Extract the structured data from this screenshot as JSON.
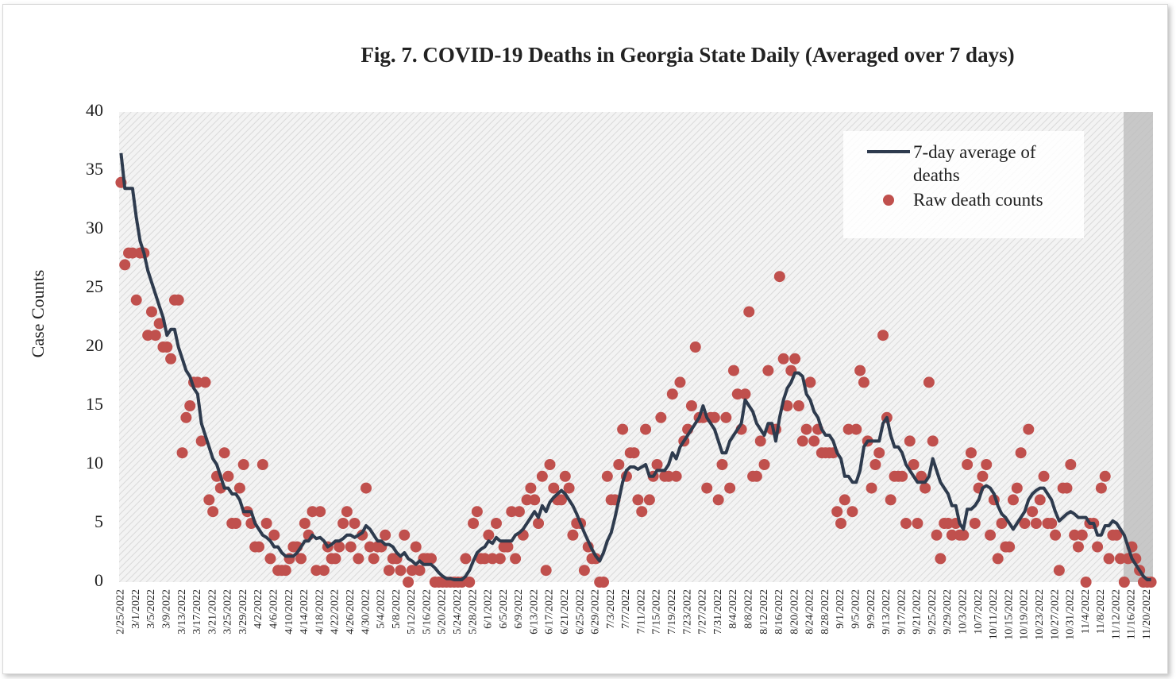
{
  "chart_data": {
    "type": "line",
    "title": "Fig. 7. COVID-19 Deaths in Georgia State Daily (Averaged over 7 days)",
    "y_label": "Case Counts",
    "ylim": [
      0,
      40
    ],
    "yticks": [
      0,
      5,
      10,
      15,
      20,
      25,
      30,
      35,
      40
    ],
    "grid": false,
    "legend": "upper right",
    "categories": [
      "2/25/2022",
      null,
      null,
      null,
      "3/1/2022",
      null,
      null,
      null,
      "3/5/2022",
      null,
      null,
      null,
      "3/9/2022",
      null,
      null,
      null,
      "3/13/2022",
      null,
      null,
      null,
      "3/17/2022",
      null,
      null,
      null,
      "3/21/2022",
      null,
      null,
      null,
      "3/25/2022",
      null,
      null,
      null,
      "3/29/2022",
      null,
      null,
      null,
      "4/2/2022",
      null,
      null,
      null,
      "4/6/2022",
      null,
      null,
      null,
      "4/10/2022",
      null,
      null,
      null,
      "4/14/2022",
      null,
      null,
      null,
      "4/18/2022",
      null,
      null,
      null,
      "4/22/2022",
      null,
      null,
      null,
      "4/26/2022",
      null,
      null,
      null,
      "4/30/2022",
      null,
      null,
      null,
      "5/4/2022",
      null,
      null,
      null,
      "5/8/2022",
      null,
      null,
      null,
      "5/12/2022",
      null,
      null,
      null,
      "5/16/2022",
      null,
      null,
      null,
      "5/20/2022",
      null,
      null,
      null,
      "5/24/2022",
      null,
      null,
      null,
      "5/28/2022",
      null,
      null,
      null,
      "6/1/2022",
      null,
      null,
      null,
      "6/5/2022",
      null,
      null,
      null,
      "6/9/2022",
      null,
      null,
      null,
      "6/13/2022",
      null,
      null,
      null,
      "6/17/2022",
      null,
      null,
      null,
      "6/21/2022",
      null,
      null,
      null,
      "6/25/2022",
      null,
      null,
      null,
      "6/29/2022",
      null,
      null,
      null,
      "7/3/2022",
      null,
      null,
      null,
      "7/7/2022",
      null,
      null,
      null,
      "7/11/2022",
      null,
      null,
      null,
      "7/15/2022",
      null,
      null,
      null,
      "7/19/2022",
      null,
      null,
      null,
      "7/23/2022",
      null,
      null,
      null,
      "7/27/2022",
      null,
      null,
      null,
      "7/31/2022",
      null,
      null,
      null,
      "8/4/2022",
      null,
      null,
      null,
      "8/8/2022",
      null,
      null,
      null,
      "8/12/2022",
      null,
      null,
      null,
      "8/16/2022",
      null,
      null,
      null,
      "8/20/2022",
      null,
      null,
      null,
      "8/24/2022",
      null,
      null,
      null,
      "8/28/2022",
      null,
      null,
      null,
      "9/1/2022",
      null,
      null,
      null,
      "9/5/2022",
      null,
      null,
      null,
      "9/9/2022",
      null,
      null,
      null,
      "9/13/2022",
      null,
      null,
      null,
      "9/17/2022",
      null,
      null,
      null,
      "9/21/2022",
      null,
      null,
      null,
      "9/25/2022",
      null,
      null,
      null,
      "9/29/2022",
      null,
      null,
      null,
      "10/3/2022",
      null,
      null,
      null,
      "10/7/2022",
      null,
      null,
      null,
      "10/11/2022",
      null,
      null,
      null,
      "10/15/2022",
      null,
      null,
      null,
      "10/19/2022",
      null,
      null,
      null,
      "10/23/2022",
      null,
      null,
      null,
      "10/27/2022",
      null,
      null,
      null,
      "10/31/2022",
      null,
      null,
      null,
      "11/4/2022",
      null,
      null,
      null,
      "11/8/2022",
      null,
      null,
      null,
      "11/12/2022",
      null,
      null,
      null,
      "11/16/2022",
      null,
      null,
      null,
      "11/20/2022",
      null
    ],
    "series": [
      {
        "name": "7-day average of deaths",
        "mode": "line",
        "color": "#2e3b4e",
        "values": [
          36.5,
          33.5,
          33.5,
          33.5,
          31,
          29,
          28,
          26.5,
          25.5,
          24.5,
          23.5,
          22.5,
          21,
          21.5,
          21.5,
          20,
          19,
          18,
          17.5,
          16.5,
          16,
          13.5,
          12.5,
          11.5,
          10.5,
          10,
          9,
          8,
          8,
          7.5,
          7.5,
          7,
          6,
          6,
          6,
          5,
          4.5,
          4,
          3.8,
          3.5,
          3,
          3,
          2.5,
          2.2,
          2.2,
          2.2,
          2.5,
          3,
          3.5,
          3.5,
          4,
          3.7,
          3.8,
          3.5,
          3,
          3.2,
          3.5,
          3.5,
          3.7,
          4,
          4,
          3.8,
          4,
          4.2,
          4.8,
          4.5,
          4,
          3.5,
          3.5,
          3.2,
          3.2,
          3,
          2.5,
          2.2,
          2.5,
          2,
          1.8,
          1.5,
          1.8,
          1.5,
          1.5,
          1.5,
          1.2,
          0.8,
          0.5,
          0.3,
          0.3,
          0.2,
          0.2,
          0.2,
          0.5,
          1,
          1.8,
          2.5,
          2.8,
          3,
          3.5,
          3.3,
          3.8,
          3.5,
          3.5,
          3.5,
          3.5,
          4,
          4.2,
          4.5,
          5,
          5.5,
          6,
          5.5,
          6.5,
          6,
          6.8,
          7.2,
          7.5,
          7.8,
          7.5,
          7,
          6.5,
          5.8,
          5,
          4.2,
          3.5,
          2.8,
          2.2,
          1.8,
          2.5,
          3.5,
          4.2,
          5.5,
          7,
          8.5,
          9.5,
          9.8,
          9.8,
          9.6,
          9.8,
          10,
          9,
          9,
          9.5,
          9.5,
          9.5,
          10,
          11,
          10.5,
          11.5,
          12,
          12.5,
          13,
          13.5,
          14,
          15,
          14,
          13.5,
          13,
          12,
          11,
          11,
          12,
          12.5,
          13,
          13.5,
          15.5,
          15,
          14.5,
          13.5,
          13,
          12.5,
          13.5,
          13.5,
          12,
          14,
          15.5,
          16.5,
          17,
          17.8,
          17.8,
          17.5,
          16,
          15.5,
          14.5,
          14,
          13,
          12.5,
          12.5,
          12,
          11,
          10.5,
          9,
          9,
          8.5,
          8.5,
          9.5,
          11.5,
          12,
          12,
          12,
          12,
          13.5,
          14,
          12.5,
          11.5,
          11.5,
          11,
          10,
          9.5,
          9,
          8.5,
          8.5,
          8.5,
          9,
          10.5,
          9.5,
          8.5,
          8,
          7.5,
          6.5,
          6.5,
          5,
          4.5,
          6.2,
          6.2,
          6.5,
          7,
          8,
          8.2,
          8,
          7.5,
          6.5,
          5.8,
          5.5,
          5,
          4.5,
          5,
          5.5,
          6,
          7,
          7.5,
          7.8,
          8,
          8,
          7.5,
          7,
          6,
          5.2,
          5.5,
          5.8,
          6,
          5.8,
          5.5,
          5.5,
          5.5,
          5,
          5,
          4,
          4,
          4.8,
          4.8,
          5.2,
          5,
          4.5,
          4,
          3,
          2,
          1.5,
          1,
          0.5,
          0.2,
          0.2
        ]
      },
      {
        "name": "Raw death counts",
        "mode": "markers",
        "color": "#c0504d",
        "values": [
          34,
          27,
          28,
          28,
          24,
          28,
          28,
          21,
          23,
          21,
          22,
          20,
          20,
          19,
          24,
          24,
          11,
          14,
          15,
          17,
          17,
          12,
          17,
          7,
          6,
          9,
          8,
          11,
          9,
          5,
          5,
          8,
          10,
          6,
          5,
          3,
          3,
          10,
          5,
          2,
          4,
          1,
          1,
          1,
          2,
          3,
          3,
          2,
          5,
          4,
          6,
          1,
          6,
          1,
          3,
          2,
          2,
          3,
          5,
          6,
          3,
          5,
          2,
          4,
          8,
          3,
          2,
          3,
          3,
          4,
          1,
          2,
          2,
          1,
          4,
          0,
          1,
          3,
          1,
          2,
          2,
          2,
          0,
          0,
          0,
          0,
          0,
          0,
          0,
          0,
          2,
          0,
          5,
          6,
          2,
          2,
          4,
          2,
          5,
          2,
          3,
          3,
          6,
          2,
          6,
          4,
          7,
          8,
          7,
          5,
          9,
          1,
          10,
          8,
          7,
          7,
          9,
          8,
          4,
          5,
          5,
          1,
          3,
          2,
          2,
          0,
          0,
          9,
          7,
          7,
          10,
          13,
          9,
          11,
          11,
          7,
          6,
          13,
          7,
          9,
          10,
          14,
          9,
          9,
          16,
          9,
          17,
          12,
          13,
          15,
          20,
          14,
          14,
          8,
          14,
          14,
          7,
          10,
          14,
          8,
          18,
          16,
          13,
          16,
          23,
          9,
          9,
          12,
          10,
          18,
          13,
          13,
          26,
          19,
          15,
          18,
          19,
          15,
          12,
          13,
          17,
          12,
          13,
          11,
          11,
          11,
          11,
          6,
          5,
          7,
          13,
          6,
          13,
          18,
          17,
          12,
          8,
          10,
          11,
          21,
          14,
          7,
          9,
          9,
          9,
          5,
          12,
          10,
          5,
          9,
          8,
          17,
          12,
          4,
          2,
          5,
          5,
          4,
          5,
          4,
          4,
          10,
          11,
          5,
          8,
          9,
          10,
          4,
          7,
          2,
          5,
          3,
          3,
          7,
          8,
          11,
          5,
          13,
          6,
          5,
          7,
          9,
          5,
          5,
          4,
          1,
          8,
          8,
          10,
          4,
          3,
          4,
          0,
          5,
          5,
          3,
          8,
          9,
          2,
          4,
          4,
          2,
          0,
          2,
          3,
          2,
          1,
          0,
          0,
          0
        ]
      }
    ]
  }
}
